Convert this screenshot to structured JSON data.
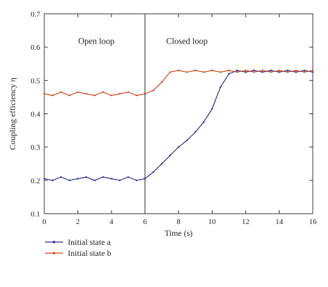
{
  "chart_data": {
    "type": "line",
    "title": "",
    "xlabel": "Time (s)",
    "ylabel": "Coupling efficiency η",
    "xlim": [
      0,
      16
    ],
    "ylim": [
      0.1,
      0.7
    ],
    "xticks": [
      "0",
      "2",
      "4",
      "6",
      "8",
      "10",
      "12",
      "14",
      "16"
    ],
    "yticks": [
      "0.1",
      "0.2",
      "0.3",
      "0.4",
      "0.5",
      "0.6",
      "0.7"
    ],
    "grid": false,
    "legend_position": "bottom-left, below plot",
    "annotations": [
      {
        "text": "Open loop",
        "x": 3.1,
        "y": 0.61
      },
      {
        "text": "Closed loop",
        "x": 8.5,
        "y": 0.61
      }
    ],
    "vertical_line": {
      "x": 6.0
    },
    "series": [
      {
        "name": "Initial state a",
        "color": "#2b2b8c",
        "x": [
          0,
          0.5,
          1,
          1.5,
          2,
          2.5,
          3,
          3.5,
          4,
          4.5,
          5,
          5.5,
          6,
          6.5,
          7,
          7.5,
          8,
          8.5,
          9,
          9.5,
          10,
          10.5,
          11,
          11.5,
          12,
          12.5,
          13,
          13.5,
          14,
          14.5,
          15,
          15.5,
          16
        ],
        "values": [
          0.205,
          0.2,
          0.21,
          0.2,
          0.205,
          0.21,
          0.2,
          0.21,
          0.205,
          0.2,
          0.21,
          0.2,
          0.205,
          0.225,
          0.25,
          0.275,
          0.3,
          0.32,
          0.345,
          0.375,
          0.415,
          0.48,
          0.52,
          0.53,
          0.525,
          0.53,
          0.525,
          0.53,
          0.525,
          0.53,
          0.525,
          0.53,
          0.525
        ]
      },
      {
        "name": "Initial state b",
        "color": "#d0451b",
        "x": [
          0,
          0.5,
          1,
          1.5,
          2,
          2.5,
          3,
          3.5,
          4,
          4.5,
          5,
          5.5,
          6,
          6.5,
          7,
          7.5,
          8,
          8.5,
          9,
          9.5,
          10,
          10.5,
          11,
          11.5,
          12,
          12.5,
          13,
          13.5,
          14,
          14.5,
          15,
          15.5,
          16
        ],
        "values": [
          0.46,
          0.455,
          0.465,
          0.455,
          0.465,
          0.46,
          0.455,
          0.465,
          0.455,
          0.46,
          0.465,
          0.455,
          0.46,
          0.47,
          0.495,
          0.525,
          0.53,
          0.525,
          0.53,
          0.525,
          0.53,
          0.525,
          0.53,
          0.525,
          0.53,
          0.525,
          0.53,
          0.525,
          0.53,
          0.525,
          0.53,
          0.525,
          0.53
        ]
      }
    ]
  }
}
